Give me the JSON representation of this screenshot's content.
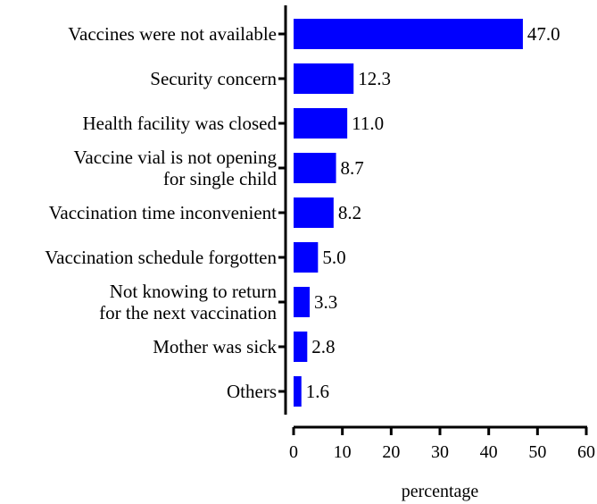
{
  "chart_data": {
    "type": "bar",
    "orientation": "horizontal",
    "categories": [
      [
        "Vaccines were not available"
      ],
      [
        "Security concern"
      ],
      [
        "Health facility was closed"
      ],
      [
        "Vaccine vial is not opening",
        "for single child"
      ],
      [
        "Vaccination time inconvenient"
      ],
      [
        "Vaccination schedule forgotten"
      ],
      [
        "Not knowing to return",
        "for the next vaccination"
      ],
      [
        "Mother was sick"
      ],
      [
        "Others"
      ]
    ],
    "values": [
      47.0,
      12.3,
      11.0,
      8.7,
      8.2,
      5.0,
      3.3,
      2.8,
      1.6
    ],
    "value_labels": [
      "47.0",
      "12.3",
      "11.0",
      "8.7",
      "8.2",
      "5.0",
      "3.3",
      "2.8",
      "1.6"
    ],
    "xlabel": "percentage",
    "ylabel": "",
    "title": "",
    "xlim": [
      0,
      60
    ],
    "xticks": [
      "0",
      "10",
      "20",
      "30",
      "40",
      "50",
      "60"
    ],
    "grid": false,
    "bar_color": "#0000FF"
  }
}
